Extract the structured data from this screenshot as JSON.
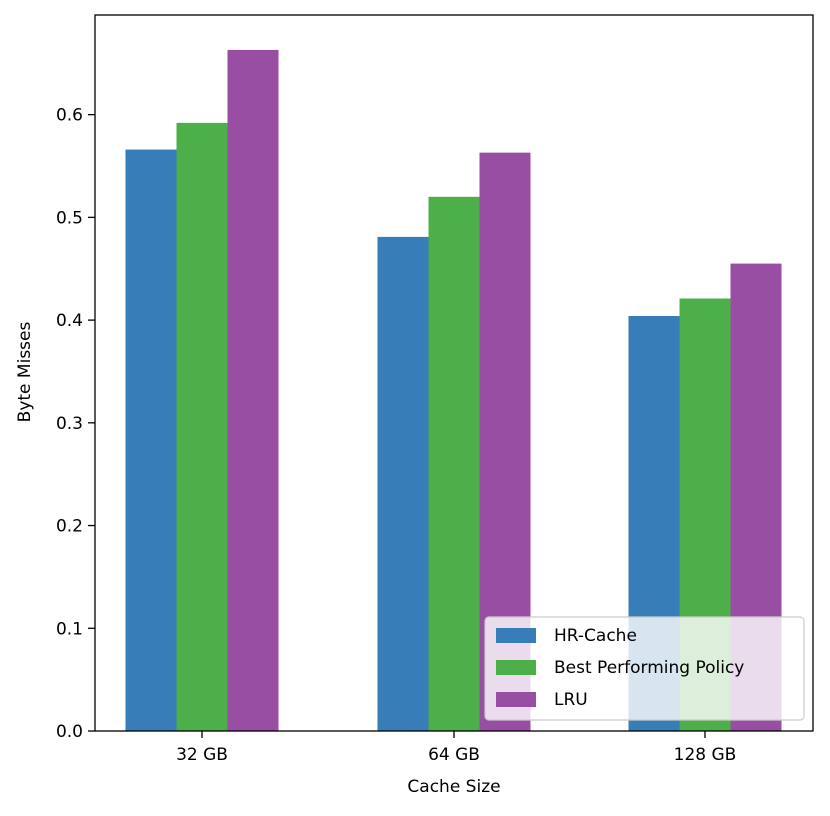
{
  "chart_data": {
    "type": "bar",
    "title": "",
    "xlabel": "Cache Size",
    "ylabel": "Byte Misses",
    "categories": [
      "32 GB",
      "64 GB",
      "128 GB"
    ],
    "series": [
      {
        "name": "HR-Cache",
        "values": [
          0.566,
          0.481,
          0.404
        ],
        "color": "#377eb8"
      },
      {
        "name": "Best Performing Policy",
        "values": [
          0.592,
          0.52,
          0.421
        ],
        "color": "#4daf4a"
      },
      {
        "name": "LRU",
        "values": [
          0.663,
          0.563,
          0.455
        ],
        "color": "#984ea3"
      }
    ],
    "ylim": [
      0,
      0.697
    ],
    "yticks": [
      "0.0",
      "0.1",
      "0.2",
      "0.3",
      "0.4",
      "0.5",
      "0.6"
    ],
    "grid": false,
    "legend_position": "lower-right"
  }
}
